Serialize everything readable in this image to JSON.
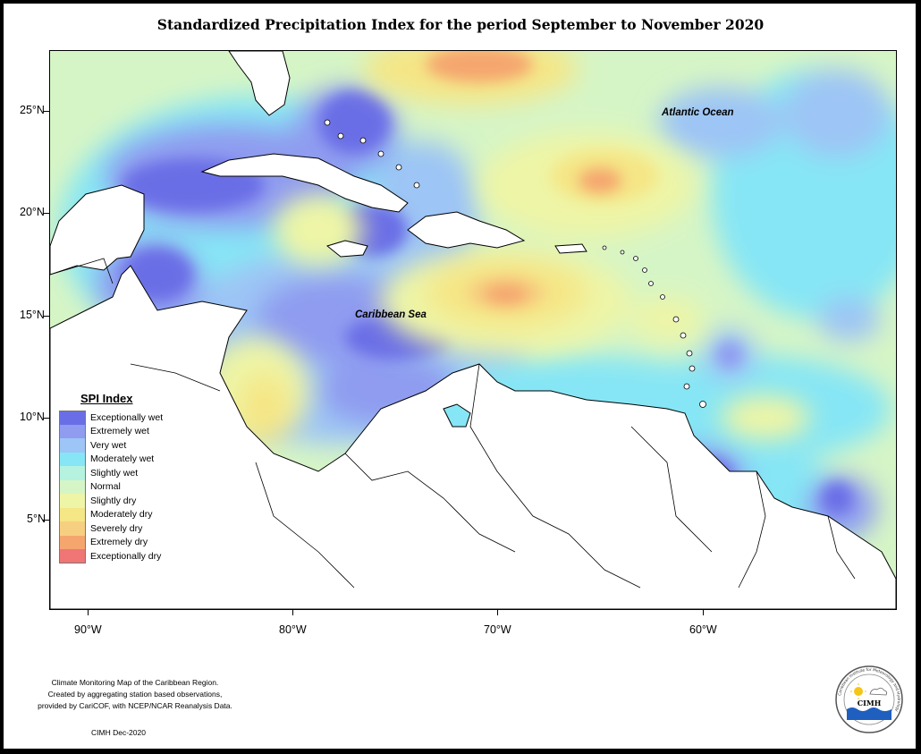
{
  "title": "Standardized Precipitation Index for the period September to November 2020",
  "y_axis_labels": [
    "25°N",
    "20°N",
    "15°N",
    "10°N",
    "5°N"
  ],
  "x_axis_labels": [
    "90°W",
    "80°W",
    "70°W",
    "60°W"
  ],
  "map_labels": {
    "atlantic": "Atlantic Ocean",
    "caribbean": "Caribbean Sea"
  },
  "legend": {
    "title": "SPI Index",
    "items": [
      {
        "label": "Exceptionally wet",
        "color": "#6a6ee6"
      },
      {
        "label": "Extremely wet",
        "color": "#8f9cf0"
      },
      {
        "label": "Very wet",
        "color": "#9dc5f5"
      },
      {
        "label": "Moderately wet",
        "color": "#86e6f5"
      },
      {
        "label": "Slightly wet",
        "color": "#b5f2df"
      },
      {
        "label": "Normal",
        "color": "#d6f5c6"
      },
      {
        "label": "Slightly dry",
        "color": "#eef5a6"
      },
      {
        "label": "Moderately dry",
        "color": "#f5e686"
      },
      {
        "label": "Severely dry",
        "color": "#f7cf80"
      },
      {
        "label": "Extremely dry",
        "color": "#f5a66e"
      },
      {
        "label": "Exceptionally dry",
        "color": "#f07575"
      }
    ]
  },
  "footer": {
    "line1": "Climate Monitoring Map of the Caribbean Region.",
    "line2": "Created by aggregating station based observations,",
    "line3": "provided by CariCOF, with NCEP/NCAR Reanalysis Data.",
    "date": "CIMH Dec-2020"
  },
  "logo": {
    "text": "CIMH",
    "ring_text": "Caribbean Institute for Meteorology and Hydrology"
  }
}
